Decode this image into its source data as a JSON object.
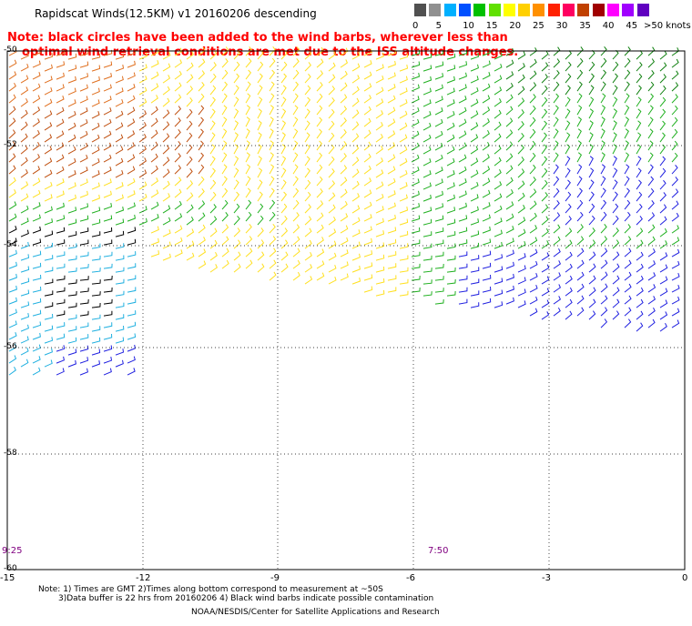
{
  "title": "Rapidscat Winds(12.5KM) v1 20160206 descending",
  "note_line1": "Note: black circles have been added to the wind barbs, wherever less than",
  "note_line2": "optimal wind retrieval conditions are met due to the ISS altitude changes.",
  "legend": {
    "units": ">50 knots",
    "labels": [
      "0",
      "5",
      "10",
      "15",
      "20",
      "25",
      "30",
      "35",
      "40",
      "45"
    ],
    "colors": [
      "#505050",
      "#909090",
      "#00b0ff",
      "#0050ff",
      "#00c000",
      "#60e000",
      "#ffff00",
      "#ffd000",
      "#ff9000",
      "#ff2000",
      "#ff0060",
      "#c04000",
      "#a00000",
      "#ff00ff",
      "#a000ff",
      "#6000c0"
    ]
  },
  "y_axis": [
    "-50",
    "-52",
    "-54",
    "-56",
    "-58",
    "-60"
  ],
  "x_axis": [
    "-15",
    "-12",
    "-9",
    "-6",
    "-3",
    "0"
  ],
  "times": [
    "9:25",
    "7:50"
  ],
  "footnotes": {
    "line1": "Note: 1) Times are GMT 2)Times along bottom correspond to measurement at ~50S",
    "line2": "3)Data buffer is 22 hrs from 20160206 4) Black wind barbs indicate possible contamination",
    "credit": "NOAA/NESDIS/Center for Satellite Applications and Research"
  },
  "barb_colors": {
    "orange": "#e07020",
    "brown": "#c05010",
    "yellow": "#ffe020",
    "lightyellow": "#ffee60",
    "green": "#20b020",
    "darkgreen": "#108010",
    "blue": "#2020e0",
    "cyan": "#20b0e0",
    "black": "#000000"
  }
}
